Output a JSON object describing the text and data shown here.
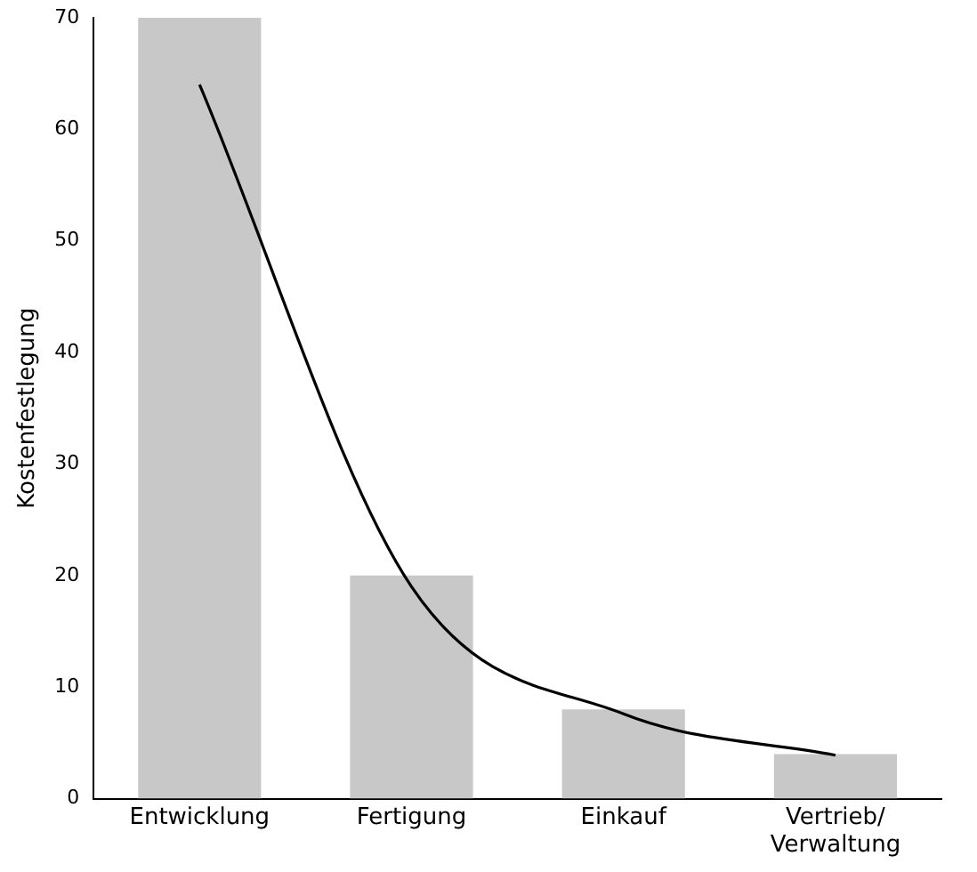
{
  "chart_data": {
    "type": "bar",
    "ylabel": "Kostenfestlegung",
    "categories": [
      "Entwicklung",
      "Fertigung",
      "Einkauf",
      "Vertrieb/\nVerwaltung"
    ],
    "series": [
      {
        "color": "#c8c8c8",
        "values": [
          70,
          20,
          8,
          4
        ]
      },
      {
        "type": "line",
        "color": "#000000",
        "values": [
          64,
          19,
          7.6,
          3.9
        ]
      }
    ],
    "ylim": [
      0,
      70
    ],
    "yticks": [
      0,
      10,
      20,
      30,
      40,
      50,
      60,
      70
    ],
    "grid": false,
    "legend": false,
    "marker": "none"
  }
}
